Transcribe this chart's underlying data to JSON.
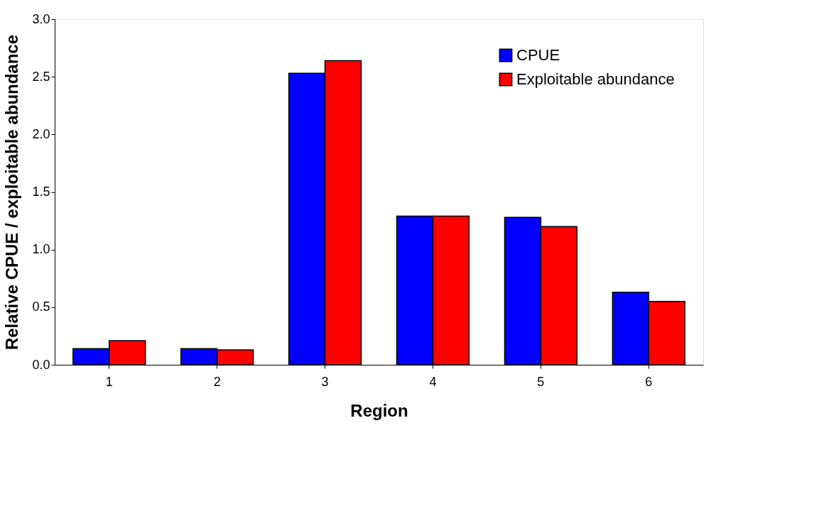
{
  "chart_data": {
    "type": "bar",
    "xlabel": "Region",
    "ylabel": "Relative CPUE / exploitable abundance",
    "categories": [
      "1",
      "2",
      "3",
      "4",
      "5",
      "6"
    ],
    "series": [
      {
        "name": "CPUE",
        "color": "#0000ff",
        "values": [
          0.14,
          0.14,
          2.53,
          1.29,
          1.28,
          0.63
        ]
      },
      {
        "name": "Exploitable abundance",
        "color": "#ff0000",
        "values": [
          0.21,
          0.13,
          2.64,
          1.29,
          1.2,
          0.55
        ]
      }
    ],
    "ylim": [
      0,
      3.0
    ],
    "yticks": [
      {
        "value": 0,
        "label": "0.0"
      },
      {
        "value": 0.5,
        "label": "0.5"
      },
      {
        "value": 1,
        "label": "1.0"
      },
      {
        "value": 1.5,
        "label": "1.5"
      },
      {
        "value": 2,
        "label": "2.0"
      },
      {
        "value": 2.5,
        "label": "2.5"
      },
      {
        "value": 3,
        "label": "3.0"
      }
    ],
    "grid": false,
    "legend": "top right"
  }
}
